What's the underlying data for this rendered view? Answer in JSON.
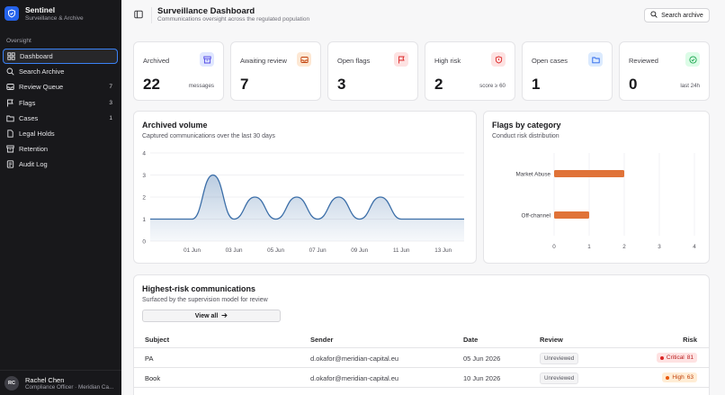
{
  "brand": {
    "name": "Sentinel",
    "subtitle": "Surveillance & Archive"
  },
  "sidebar": {
    "section_label": "Oversight",
    "items": [
      {
        "label": "Dashboard",
        "icon": "grid-icon",
        "count": ""
      },
      {
        "label": "Search Archive",
        "icon": "search-icon",
        "count": ""
      },
      {
        "label": "Review Queue",
        "icon": "inbox-icon",
        "count": "7"
      },
      {
        "label": "Flags",
        "icon": "flag-icon",
        "count": "3"
      },
      {
        "label": "Cases",
        "icon": "folder-icon",
        "count": "1"
      },
      {
        "label": "Legal Holds",
        "icon": "document-icon",
        "count": ""
      },
      {
        "label": "Retention",
        "icon": "archive-icon",
        "count": ""
      },
      {
        "label": "Audit Log",
        "icon": "log-icon",
        "count": ""
      }
    ]
  },
  "user": {
    "initials": "RC",
    "name": "Rachel Chen",
    "role": "Compliance Officer · Meridian Ca..."
  },
  "header": {
    "title": "Surveillance Dashboard",
    "subtitle": "Communications oversight across the regulated population",
    "search_label": "Search archive"
  },
  "stats": [
    {
      "label": "Archived",
      "value": "22",
      "unit": "messages",
      "icon": "archive-icon",
      "color": "#e0e7ff",
      "icon_color": "#4f46e5"
    },
    {
      "label": "Awaiting review",
      "value": "7",
      "unit": "",
      "icon": "inbox-icon",
      "color": "#fde8d4",
      "icon_color": "#c2410c"
    },
    {
      "label": "Open flags",
      "value": "3",
      "unit": "",
      "icon": "flag-icon",
      "color": "#fde2e2",
      "icon_color": "#dc2626"
    },
    {
      "label": "High risk",
      "value": "2",
      "unit": "score ≥ 60",
      "icon": "shield-icon",
      "color": "#fde2e2",
      "icon_color": "#dc2626"
    },
    {
      "label": "Open cases",
      "value": "1",
      "unit": "",
      "icon": "folder-icon",
      "color": "#dbeafe",
      "icon_color": "#2563eb"
    },
    {
      "label": "Reviewed",
      "value": "0",
      "unit": "last 24h",
      "icon": "check-circle-icon",
      "color": "#dcfce7",
      "icon_color": "#16a34a"
    }
  ],
  "volume_panel": {
    "title": "Archived volume",
    "subtitle": "Captured communications over the last 30 days"
  },
  "flags_panel": {
    "title": "Flags by category",
    "subtitle": "Conduct risk distribution"
  },
  "chart_data": [
    {
      "type": "area",
      "ylim": [
        0,
        4
      ],
      "yticks": [
        "0",
        "1",
        "2",
        "3",
        "4"
      ],
      "xticks": [
        "01 Jun",
        "03 Jun",
        "05 Jun",
        "07 Jun",
        "09 Jun",
        "11 Jun",
        "13 Jun"
      ],
      "x": [
        "30 May",
        "31 May",
        "01 Jun",
        "02 Jun",
        "03 Jun",
        "04 Jun",
        "05 Jun",
        "06 Jun",
        "07 Jun",
        "08 Jun",
        "09 Jun",
        "10 Jun",
        "11 Jun",
        "12 Jun",
        "13 Jun",
        "14 Jun"
      ],
      "values": [
        1,
        1,
        1,
        3,
        1,
        2,
        1,
        2,
        1,
        2,
        1,
        2,
        1,
        1,
        1,
        1
      ]
    },
    {
      "type": "bar",
      "orientation": "horizontal",
      "categories": [
        "Market Abuse",
        "Off-channel"
      ],
      "values": [
        2,
        1
      ],
      "xlim": [
        0,
        4
      ],
      "xticks": [
        "0",
        "1",
        "2",
        "3",
        "4"
      ],
      "color": "#e07338"
    }
  ],
  "table_panel": {
    "title": "Highest-risk communications",
    "subtitle": "Surfaced by the supervision model for review",
    "view_all": "View all"
  },
  "table": {
    "headers": {
      "subject": "Subject",
      "sender": "Sender",
      "date": "Date",
      "review": "Review",
      "risk": "Risk"
    },
    "rows": [
      {
        "subject": "PA",
        "sender": "d.okafor@meridian-capital.eu",
        "date": "05 Jun 2026",
        "review": "Unreviewed",
        "risk_label": "Critical",
        "risk_score": "81",
        "risk_bg": "#fee2e2",
        "risk_fg": "#b91c1c",
        "dot": "#dc2626"
      },
      {
        "subject": "Book",
        "sender": "d.okafor@meridian-capital.eu",
        "date": "10 Jun 2026",
        "review": "Unreviewed",
        "risk_label": "High",
        "risk_score": "63",
        "risk_bg": "#ffedd5",
        "risk_fg": "#c2410c",
        "dot": "#ea580c"
      }
    ]
  }
}
